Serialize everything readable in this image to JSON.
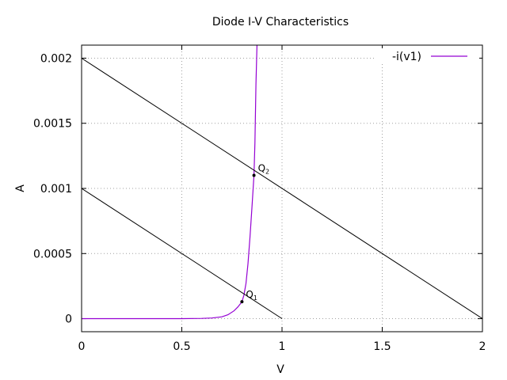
{
  "chart_data": {
    "type": "line",
    "title": "Diode I-V Characteristics",
    "xlabel": "V",
    "ylabel": "A",
    "xlim": [
      0,
      2
    ],
    "ylim": [
      -0.0001,
      0.0021
    ],
    "xticks": [
      0,
      0.5,
      1,
      1.5,
      2
    ],
    "xtick_labels": [
      "0",
      "0.5",
      "1",
      "1.5",
      "2"
    ],
    "yticks": [
      0,
      0.0005,
      0.001,
      0.0015,
      0.002
    ],
    "ytick_labels": [
      "0",
      "0.0005",
      "0.001",
      "0.0015",
      "0.002"
    ],
    "grid": true,
    "legend_position": "top-right",
    "series": [
      {
        "name": "-i(v1)",
        "color": "#9400d3",
        "x": [
          0,
          0.2,
          0.4,
          0.5,
          0.6,
          0.65,
          0.7,
          0.73,
          0.76,
          0.78,
          0.8,
          0.81,
          0.82,
          0.83,
          0.84,
          0.85,
          0.86,
          0.865,
          0.87,
          0.875
        ],
        "y": [
          0,
          0,
          0,
          0,
          2e-06,
          5e-06,
          1.4e-05,
          3e-05,
          6e-05,
          9e-05,
          0.00013,
          0.00018,
          0.00027,
          0.00042,
          0.00062,
          0.00085,
          0.0011,
          0.00135,
          0.0018,
          0.0021
        ]
      },
      {
        "color": "#000000",
        "x": [
          0,
          1
        ],
        "y": [
          0.001,
          0
        ]
      },
      {
        "color": "#000000",
        "x": [
          0,
          2
        ],
        "y": [
          0.002,
          0
        ]
      }
    ],
    "points": [
      {
        "label": "Q",
        "subscript": "1",
        "x": 0.8,
        "y": 0.00013
      },
      {
        "label": "Q",
        "subscript": "2",
        "x": 0.86,
        "y": 0.0011
      }
    ]
  }
}
